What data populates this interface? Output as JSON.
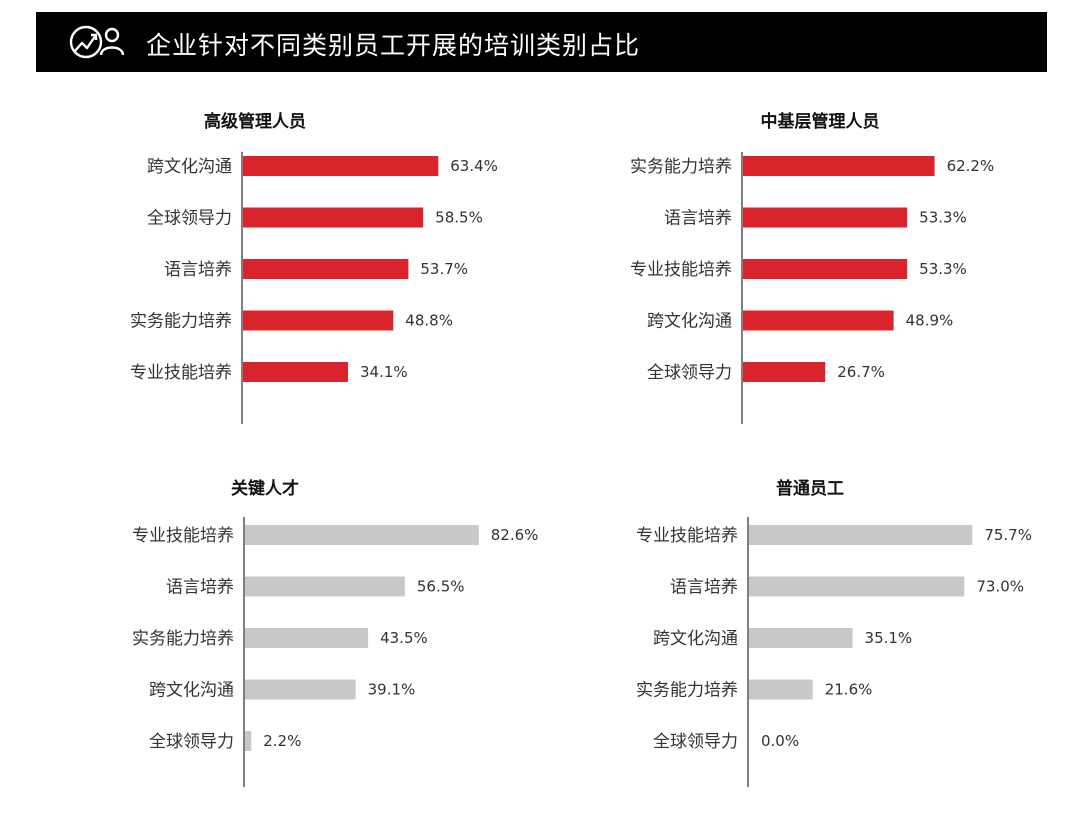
{
  "header": {
    "title": "企业针对不同类别员工开展的培训类别占比",
    "icon": "chart-people-icon"
  },
  "colors": {
    "header_bg": "#000000",
    "red": "#d9232d",
    "gray": "#c8c8c8"
  },
  "chart_data": [
    {
      "type": "bar",
      "orientation": "horizontal",
      "title": "高级管理人员",
      "categories": [
        "跨文化沟通",
        "全球领导力",
        "语言培养",
        "实务能力培养",
        "专业技能培养"
      ],
      "values": [
        63.4,
        58.5,
        53.7,
        48.8,
        34.1
      ],
      "value_labels": [
        "63.4%",
        "58.5%",
        "53.7%",
        "48.8%",
        "34.1%"
      ],
      "unit": "%",
      "color": "#d9232d",
      "grid": false
    },
    {
      "type": "bar",
      "orientation": "horizontal",
      "title": "中基层管理人员",
      "categories": [
        "实务能力培养",
        "语言培养",
        "专业技能培养",
        "跨文化沟通",
        "全球领导力"
      ],
      "values": [
        62.2,
        53.3,
        53.3,
        48.9,
        26.7
      ],
      "value_labels": [
        "62.2%",
        "53.3%",
        "53.3%",
        "48.9%",
        "26.7%"
      ],
      "unit": "%",
      "color": "#d9232d",
      "grid": false
    },
    {
      "type": "bar",
      "orientation": "horizontal",
      "title": "关键人才",
      "categories": [
        "专业技能培养",
        "语言培养",
        "实务能力培养",
        "跨文化沟通",
        "全球领导力"
      ],
      "values": [
        82.6,
        56.5,
        43.5,
        39.1,
        2.2
      ],
      "value_labels": [
        "82.6%",
        "56.5%",
        "43.5%",
        "39.1%",
        "2.2%"
      ],
      "unit": "%",
      "color": "#c8c8c8",
      "grid": false
    },
    {
      "type": "bar",
      "orientation": "horizontal",
      "title": "普通员工",
      "categories": [
        "专业技能培养",
        "语言培养",
        "跨文化沟通",
        "实务能力培养",
        "全球领导力"
      ],
      "values": [
        75.7,
        73.0,
        35.1,
        21.6,
        0.0
      ],
      "value_labels": [
        "75.7%",
        "73.0%",
        "35.1%",
        "21.6%",
        "0.0%"
      ],
      "unit": "%",
      "color": "#c8c8c8",
      "grid": false
    }
  ]
}
